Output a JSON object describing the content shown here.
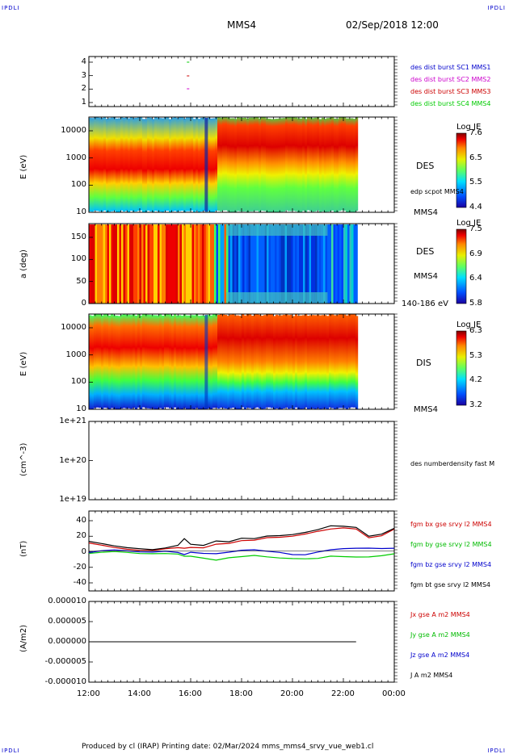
{
  "header": {
    "corner_tl": "IPDLI",
    "corner_tr": "IPDLI",
    "corner_bl": "IPDLI",
    "corner_br": "IPDLI",
    "spacecraft": "MMS4",
    "datetime": "02/Sep/2018 12:00"
  },
  "footer": {
    "text": "Produced by cl (IRAP)   Printing date: 02/Mar/2024   mms_mms4_srvy_vue_web1.cl"
  },
  "time_axis": {
    "ticks": [
      "12:00",
      "14:00",
      "16:00",
      "18:00",
      "20:00",
      "22:00",
      "00:00"
    ]
  },
  "panels": {
    "burst": {
      "yticks": [
        "1",
        "2",
        "3",
        "4"
      ],
      "legend": [
        {
          "text": "des dist burst SC1 MMS1",
          "color": "#0000cc"
        },
        {
          "text": "des dist burst SC2 MMS2",
          "color": "#cc00cc"
        },
        {
          "text": "des dist burst SC3 MMS3",
          "color": "#cc0000"
        },
        {
          "text": "des dist burst SC4 MMS4",
          "color": "#00cc00"
        }
      ]
    },
    "des_energy": {
      "ylabel": "E (eV)",
      "yticks": [
        "10",
        "100",
        "1000",
        "10000"
      ],
      "label1": "DES",
      "label2": "edp scpot MMS4",
      "label3": "MMS4",
      "cbar_title": "Log JE",
      "cbar_ticks": [
        "7.6",
        "6.5",
        "5.5",
        "4.4"
      ]
    },
    "des_pitch": {
      "ylabel": "a (deg)",
      "yticks": [
        "0",
        "50",
        "100",
        "150"
      ],
      "label1": "DES",
      "label2": "MMS4",
      "label3": "140-186 eV",
      "cbar_title": "Log JE",
      "cbar_ticks": [
        "7.5",
        "6.9",
        "6.4",
        "5.8"
      ]
    },
    "dis_energy": {
      "ylabel": "E (eV)",
      "yticks": [
        "10",
        "100",
        "1000",
        "10000"
      ],
      "label1": "DIS",
      "label2": "MMS4",
      "cbar_title": "Log JE",
      "cbar_ticks": [
        "6.3",
        "5.3",
        "4.2",
        "3.2"
      ]
    },
    "density": {
      "ylabel": "(cm^-3)",
      "yticks": [
        "1e+19",
        "1e+20",
        "1e+21"
      ],
      "legend": "des numberdensity fast M"
    },
    "bfield": {
      "ylabel": "(nT)",
      "yticks": [
        "-40",
        "-20",
        "0",
        "20",
        "40"
      ],
      "legend": [
        {
          "text": "fgm bx gse srvy l2 MMS4",
          "color": "#cc0000"
        },
        {
          "text": "fgm by gse srvy l2 MMS4",
          "color": "#00bb00"
        },
        {
          "text": "fgm bz gse srvy l2 MMS4",
          "color": "#0000cc"
        },
        {
          "text": "fgm bt gse srvy l2 MMS4",
          "color": "#000000"
        }
      ]
    },
    "current": {
      "ylabel": "(A/m2)",
      "yticks": [
        "-0.000010",
        "-0.000005",
        "0.000000",
        "0.000005",
        "0.000010"
      ],
      "legend": [
        {
          "text": "Jx gse A m2 MMS4",
          "color": "#cc0000"
        },
        {
          "text": "Jy gse A m2 MMS4",
          "color": "#00bb00"
        },
        {
          "text": "Jz gse A m2 MMS4",
          "color": "#0000cc"
        },
        {
          "text": "J A m2 MMS4",
          "color": "#000000"
        }
      ]
    }
  },
  "chart_data": {
    "type": "line",
    "x_range": [
      "12:00",
      "00:00"
    ],
    "data_end": "22:30",
    "bfield": {
      "x_hours": [
        12,
        12.5,
        13,
        13.5,
        14,
        14.5,
        15,
        15.5,
        15.75,
        16,
        16.5,
        17,
        17.5,
        18,
        18.5,
        19,
        19.5,
        20,
        20.5,
        21,
        21.5,
        22,
        22.5,
        23,
        23.5,
        24
      ],
      "bt": [
        12,
        8,
        5,
        4,
        4,
        3,
        4,
        6,
        14,
        8,
        8,
        14,
        12,
        15,
        14,
        18,
        20,
        22,
        24,
        26,
        30,
        30,
        30,
        20,
        22,
        28
      ],
      "bx": [
        10,
        6,
        3,
        2,
        2,
        2,
        3,
        3,
        2,
        4,
        5,
        10,
        10,
        12,
        12,
        16,
        18,
        20,
        22,
        24,
        26,
        28,
        28,
        18,
        20,
        27
      ],
      "by": [
        -3,
        -3,
        -2,
        -2,
        -2,
        -2,
        -3,
        -5,
        -8,
        -7,
        -8,
        -10,
        -8,
        -8,
        -7,
        -8,
        -8,
        -8,
        -9,
        -10,
        -8,
        -8,
        -7,
        -6,
        -5,
        -4
      ],
      "bz": [
        -2,
        -1,
        0,
        0,
        0,
        0,
        0,
        -3,
        -6,
        -2,
        -2,
        -2,
        -1,
        0,
        0,
        -1,
        -1,
        -3,
        -4,
        -2,
        0,
        2,
        4,
        5,
        4,
        3
      ],
      "ylim": [
        -50,
        50
      ]
    },
    "current_ylim": [
      -1e-05,
      1e-05
    ],
    "cbar_des_e": [
      4.4,
      7.6
    ],
    "cbar_des_pa": [
      5.8,
      7.5
    ],
    "cbar_dis_e": [
      3.2,
      6.3
    ]
  }
}
